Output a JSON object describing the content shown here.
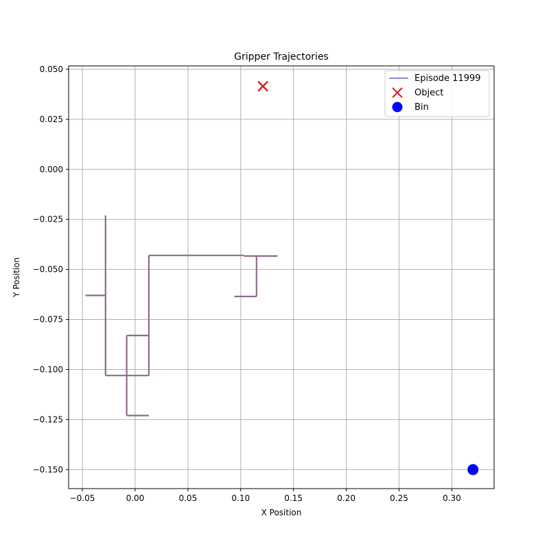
{
  "chart_data": {
    "type": "line",
    "title": "Gripper Trajectories",
    "xlabel": "X Position",
    "ylabel": "Y Position",
    "xlim": [
      -0.063,
      0.34
    ],
    "ylim": [
      -0.1595,
      0.0517
    ],
    "grid": true,
    "legend_position": "top-right",
    "x_ticks": [
      -0.05,
      0.0,
      0.05,
      0.1,
      0.15,
      0.2,
      0.25,
      0.3
    ],
    "x_tick_labels": [
      "−0.05",
      "0.00",
      "0.05",
      "0.10",
      "0.15",
      "0.20",
      "0.25",
      "0.30"
    ],
    "y_ticks": [
      0.05,
      0.025,
      0.0,
      -0.025,
      -0.05,
      -0.075,
      -0.1,
      -0.125,
      -0.15
    ],
    "y_tick_labels": [
      "0.050",
      "0.025",
      "0.000",
      "−0.025",
      "−0.050",
      "−0.075",
      "−0.100",
      "−0.125",
      "−0.150"
    ],
    "series": [
      {
        "name": "Episode 11999",
        "kind": "line",
        "color": "#9a82d6",
        "trace_color": "#8e6a8a",
        "segments": [
          [
            [
              -0.047,
              -0.063
            ],
            [
              -0.028,
              -0.063
            ]
          ],
          [
            [
              -0.028,
              -0.023
            ],
            [
              -0.028,
              -0.103
            ]
          ],
          [
            [
              -0.028,
              -0.103
            ],
            [
              0.013,
              -0.103
            ]
          ],
          [
            [
              0.013,
              -0.103
            ],
            [
              0.013,
              -0.043
            ]
          ],
          [
            [
              0.013,
              -0.043
            ],
            [
              0.103,
              -0.043
            ]
          ],
          [
            [
              0.103,
              -0.0433
            ],
            [
              0.135,
              -0.0433
            ]
          ],
          [
            [
              0.115,
              -0.0433
            ],
            [
              0.115,
              -0.0635
            ]
          ],
          [
            [
              0.094,
              -0.0635
            ],
            [
              0.115,
              -0.0635
            ]
          ],
          [
            [
              -0.008,
              -0.083
            ],
            [
              0.013,
              -0.083
            ]
          ],
          [
            [
              -0.008,
              -0.083
            ],
            [
              -0.008,
              -0.123
            ]
          ],
          [
            [
              -0.008,
              -0.123
            ],
            [
              0.013,
              -0.123
            ]
          ]
        ]
      },
      {
        "name": "Object",
        "kind": "x-marker",
        "color": "#e31a1c",
        "points": [
          [
            0.121,
            0.0415
          ]
        ]
      },
      {
        "name": "Bin",
        "kind": "circle-marker",
        "color": "#0000ff",
        "points": [
          [
            0.32,
            -0.15
          ]
        ]
      }
    ]
  }
}
